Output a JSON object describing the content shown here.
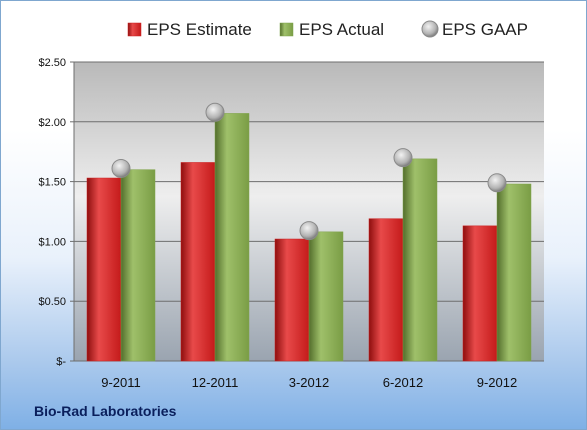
{
  "chart_data": {
    "type": "bar",
    "categories": [
      "9-2011",
      "12-2011",
      "3-2012",
      "6-2012",
      "9-2012"
    ],
    "series": [
      {
        "name": "EPS Estimate",
        "type": "bar",
        "values": [
          1.53,
          1.66,
          1.02,
          1.19,
          1.13
        ],
        "color": "#cc1f1f"
      },
      {
        "name": "EPS Actual",
        "type": "bar",
        "values": [
          1.6,
          2.07,
          1.08,
          1.69,
          1.48
        ],
        "color": "#7fa34a"
      },
      {
        "name": "EPS GAAP",
        "type": "marker",
        "values": [
          1.61,
          2.08,
          1.09,
          1.7,
          1.49
        ],
        "color": "#b8b8b8"
      }
    ],
    "ylim": [
      0,
      2.5
    ],
    "yticks": [
      0,
      0.5,
      1.0,
      1.5,
      2.0,
      2.5
    ],
    "ytick_labels": [
      "$-",
      "$0.50",
      "$1.00",
      "$1.50",
      "$2.00",
      "$2.50"
    ],
    "grid": true,
    "legend_position": "top"
  },
  "company": "Bio-Rad Laboratories"
}
